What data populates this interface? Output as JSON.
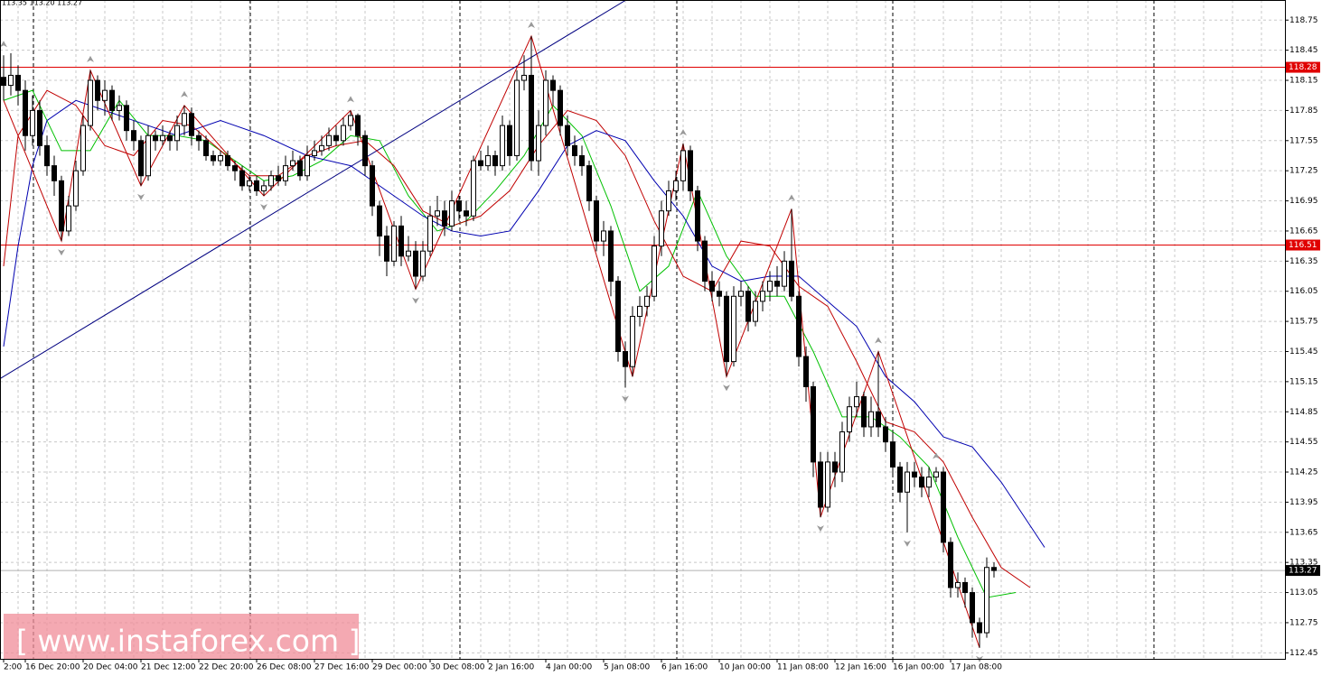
{
  "chart_data": {
    "type": "candlestick",
    "info": "113.35 113.20 113.27",
    "watermark": "[ www.instaforex.com ]",
    "ylim": [
      112.39,
      118.95
    ],
    "yticks": [
      118.75,
      118.45,
      118.15,
      117.85,
      117.55,
      117.25,
      116.95,
      116.65,
      116.35,
      116.05,
      115.75,
      115.45,
      115.15,
      114.85,
      114.55,
      114.25,
      113.95,
      113.65,
      113.35,
      113.05,
      112.75,
      112.45
    ],
    "grid": true,
    "categories": [
      "2:00",
      null,
      null,
      "16 Dec 20:00",
      null,
      null,
      null,
      null,
      null,
      null,
      null,
      "20 Dec 04:00",
      null,
      null,
      null,
      null,
      null,
      null,
      null,
      "21 Dec 12:00",
      null,
      null,
      null,
      null,
      null,
      null,
      null,
      "22 Dec 20:00",
      null,
      null,
      null,
      null,
      null,
      null,
      null,
      "26 Dec 08:00",
      null,
      null,
      null,
      null,
      null,
      null,
      null,
      "27 Dec 16:00",
      null,
      null,
      null,
      null,
      null,
      null,
      null,
      "29 Dec 00:00",
      null,
      null,
      null,
      null,
      null,
      null,
      null,
      "30 Dec 08:00",
      null,
      null,
      null,
      null,
      null,
      null,
      null,
      "2 Jan 16:00",
      null,
      null,
      null,
      null,
      null,
      null,
      null,
      "4 Jan 00:00",
      null,
      null,
      null,
      null,
      null,
      null,
      null,
      "5 Jan 08:00",
      null,
      null,
      null,
      null,
      null,
      null,
      null,
      "6 Jan 16:00",
      null,
      null,
      null,
      null,
      null,
      null,
      null,
      "10 Jan 00:00",
      null,
      null,
      null,
      null,
      null,
      null,
      null,
      "11 Jan 08:00",
      null,
      null,
      null,
      null,
      null,
      null,
      null,
      "12 Jan 16:00",
      null,
      null,
      null,
      null,
      null,
      null,
      null,
      "16 Jan 00:00",
      null,
      null,
      null,
      null,
      null,
      null,
      null,
      "17 Jan 08:00",
      null,
      null,
      null,
      null,
      null,
      null
    ],
    "values": [
      [
        118.18,
        118.4,
        117.95,
        118.1
      ],
      [
        118.1,
        118.42,
        118.0,
        118.2
      ],
      [
        118.2,
        118.3,
        117.9,
        118.05
      ],
      [
        118.05,
        118.15,
        117.45,
        117.6
      ],
      [
        117.6,
        118.0,
        117.5,
        117.85
      ],
      [
        117.85,
        117.95,
        117.4,
        117.5
      ],
      [
        117.5,
        117.6,
        117.2,
        117.3
      ],
      [
        117.3,
        117.4,
        117.0,
        117.15
      ],
      [
        117.15,
        117.2,
        116.55,
        116.65
      ],
      [
        116.65,
        117.0,
        116.6,
        116.9
      ],
      [
        116.9,
        117.35,
        116.85,
        117.25
      ],
      [
        117.25,
        117.8,
        117.2,
        117.7
      ],
      [
        117.7,
        118.25,
        117.65,
        118.15
      ],
      [
        118.15,
        118.2,
        117.85,
        117.95
      ],
      [
        117.95,
        118.15,
        117.8,
        118.05
      ],
      [
        118.05,
        118.1,
        117.75,
        117.85
      ],
      [
        117.85,
        118.0,
        117.75,
        117.9
      ],
      [
        117.9,
        117.95,
        117.55,
        117.65
      ],
      [
        117.65,
        117.75,
        117.45,
        117.55
      ],
      [
        117.55,
        117.6,
        117.1,
        117.2
      ],
      [
        117.2,
        117.7,
        117.15,
        117.6
      ],
      [
        117.6,
        117.65,
        117.45,
        117.55
      ],
      [
        117.55,
        117.7,
        117.5,
        117.6
      ],
      [
        117.6,
        117.65,
        117.45,
        117.55
      ],
      [
        117.55,
        117.8,
        117.45,
        117.7
      ],
      [
        117.7,
        117.9,
        117.6,
        117.82
      ],
      [
        117.82,
        117.88,
        117.5,
        117.6
      ],
      [
        117.6,
        117.65,
        117.45,
        117.55
      ],
      [
        117.55,
        117.6,
        117.35,
        117.4
      ],
      [
        117.4,
        117.45,
        117.3,
        117.35
      ],
      [
        117.35,
        117.45,
        117.3,
        117.4
      ],
      [
        117.4,
        117.45,
        117.25,
        117.3
      ],
      [
        117.3,
        117.35,
        117.15,
        117.25
      ],
      [
        117.25,
        117.3,
        117.05,
        117.1
      ],
      [
        117.1,
        117.2,
        117.05,
        117.15
      ],
      [
        117.15,
        117.2,
        117.0,
        117.05
      ],
      [
        117.05,
        117.15,
        117.0,
        117.1
      ],
      [
        117.1,
        117.25,
        117.05,
        117.2
      ],
      [
        117.2,
        117.3,
        117.1,
        117.15
      ],
      [
        117.15,
        117.4,
        117.1,
        117.3
      ],
      [
        117.3,
        117.45,
        117.25,
        117.35
      ],
      [
        117.35,
        117.4,
        117.15,
        117.2
      ],
      [
        117.2,
        117.5,
        117.15,
        117.4
      ],
      [
        117.4,
        117.55,
        117.35,
        117.45
      ],
      [
        117.45,
        117.6,
        117.4,
        117.5
      ],
      [
        117.5,
        117.68,
        117.45,
        117.6
      ],
      [
        117.6,
        117.7,
        117.5,
        117.55
      ],
      [
        117.55,
        117.78,
        117.5,
        117.7
      ],
      [
        117.7,
        117.85,
        117.65,
        117.8
      ],
      [
        117.8,
        117.82,
        117.5,
        117.6
      ],
      [
        117.6,
        117.65,
        117.2,
        117.3
      ],
      [
        117.3,
        117.35,
        116.8,
        116.9
      ],
      [
        116.9,
        116.95,
        116.4,
        116.6
      ],
      [
        116.6,
        116.7,
        116.2,
        116.35
      ],
      [
        116.35,
        116.75,
        116.3,
        116.7
      ],
      [
        116.7,
        116.8,
        116.3,
        116.4
      ],
      [
        116.4,
        116.6,
        116.35,
        116.45
      ],
      [
        116.45,
        116.55,
        116.07,
        116.2
      ],
      [
        116.2,
        116.55,
        116.15,
        116.45
      ],
      [
        116.45,
        116.9,
        116.4,
        116.8
      ],
      [
        116.8,
        117.0,
        116.7,
        116.85
      ],
      [
        116.85,
        116.95,
        116.6,
        116.7
      ],
      [
        116.7,
        117.05,
        116.65,
        116.95
      ],
      [
        116.95,
        117.0,
        116.75,
        116.85
      ],
      [
        116.85,
        116.95,
        116.7,
        116.8
      ],
      [
        116.8,
        117.4,
        116.75,
        117.35
      ],
      [
        117.35,
        117.45,
        117.25,
        117.3
      ],
      [
        117.3,
        117.5,
        117.25,
        117.4
      ],
      [
        117.4,
        117.45,
        117.2,
        117.3
      ],
      [
        117.3,
        117.8,
        117.25,
        117.7
      ],
      [
        117.7,
        117.75,
        117.3,
        117.4
      ],
      [
        117.4,
        118.25,
        117.35,
        118.15
      ],
      [
        118.15,
        118.4,
        118.05,
        118.2
      ],
      [
        118.2,
        118.59,
        117.25,
        117.35
      ],
      [
        117.35,
        117.85,
        117.2,
        117.7
      ],
      [
        117.7,
        118.25,
        117.6,
        118.15
      ],
      [
        118.15,
        118.2,
        117.9,
        118.05
      ],
      [
        118.05,
        118.1,
        117.6,
        117.7
      ],
      [
        117.7,
        117.8,
        117.4,
        117.5
      ],
      [
        117.5,
        117.6,
        117.3,
        117.4
      ],
      [
        117.4,
        117.5,
        117.2,
        117.3
      ],
      [
        117.3,
        117.35,
        116.85,
        116.95
      ],
      [
        116.95,
        117.0,
        116.45,
        116.55
      ],
      [
        116.55,
        116.75,
        116.4,
        116.65
      ],
      [
        116.65,
        116.7,
        116.0,
        116.15
      ],
      [
        116.15,
        116.2,
        115.35,
        115.45
      ],
      [
        115.45,
        115.55,
        115.09,
        115.3
      ],
      [
        115.3,
        115.9,
        115.2,
        115.8
      ],
      [
        115.8,
        116.0,
        115.7,
        115.9
      ],
      [
        115.9,
        116.1,
        115.8,
        116.0
      ],
      [
        116.0,
        116.6,
        115.95,
        116.5
      ],
      [
        116.5,
        116.95,
        116.4,
        116.85
      ],
      [
        116.85,
        117.15,
        116.8,
        117.05
      ],
      [
        117.05,
        117.25,
        116.95,
        117.15
      ],
      [
        117.15,
        117.52,
        117.05,
        117.45
      ],
      [
        117.45,
        117.5,
        116.95,
        117.05
      ],
      [
        117.05,
        117.1,
        116.45,
        116.55
      ],
      [
        116.55,
        116.6,
        116.05,
        116.15
      ],
      [
        116.15,
        116.25,
        115.95,
        116.05
      ],
      [
        116.05,
        116.15,
        115.9,
        116.0
      ],
      [
        116.0,
        116.05,
        115.2,
        115.35
      ],
      [
        115.35,
        116.1,
        115.3,
        116.0
      ],
      [
        116.0,
        116.15,
        115.9,
        116.05
      ],
      [
        116.05,
        116.1,
        115.65,
        115.75
      ],
      [
        115.75,
        116.05,
        115.7,
        115.95
      ],
      [
        115.95,
        116.15,
        115.85,
        116.05
      ],
      [
        116.05,
        116.25,
        115.95,
        116.15
      ],
      [
        116.15,
        116.3,
        116.0,
        116.1
      ],
      [
        116.1,
        116.45,
        116.05,
        116.35
      ],
      [
        116.35,
        116.87,
        115.95,
        116.0
      ],
      [
        116.0,
        116.05,
        115.3,
        115.4
      ],
      [
        115.4,
        115.5,
        114.95,
        115.1
      ],
      [
        115.1,
        115.15,
        114.2,
        114.35
      ],
      [
        114.35,
        114.45,
        113.8,
        113.9
      ],
      [
        113.9,
        114.45,
        113.85,
        114.35
      ],
      [
        114.35,
        114.45,
        114.1,
        114.25
      ],
      [
        114.25,
        114.75,
        114.15,
        114.65
      ],
      [
        114.65,
        115.0,
        114.55,
        114.9
      ],
      [
        114.9,
        115.15,
        114.8,
        115.0
      ],
      [
        115.0,
        115.05,
        114.6,
        114.7
      ],
      [
        114.7,
        115.0,
        114.6,
        114.85
      ],
      [
        114.85,
        115.45,
        114.6,
        114.7
      ],
      [
        114.7,
        114.8,
        114.45,
        114.55
      ],
      [
        114.55,
        114.65,
        114.2,
        114.3
      ],
      [
        114.3,
        114.35,
        113.95,
        114.05
      ],
      [
        114.05,
        114.35,
        113.65,
        114.25
      ],
      [
        114.25,
        114.35,
        114.1,
        114.2
      ],
      [
        114.2,
        114.3,
        114.0,
        114.1
      ],
      [
        114.1,
        114.3,
        114.0,
        114.2
      ],
      [
        114.2,
        114.3,
        114.15,
        114.25
      ],
      [
        114.25,
        114.3,
        113.45,
        113.55
      ],
      [
        113.55,
        113.6,
        113.0,
        113.1
      ],
      [
        113.1,
        113.25,
        113.0,
        113.15
      ],
      [
        113.15,
        113.2,
        112.9,
        113.05
      ],
      [
        113.05,
        113.1,
        112.6,
        112.75
      ],
      [
        112.75,
        112.8,
        112.5,
        112.65
      ],
      [
        112.65,
        113.4,
        112.6,
        113.3
      ],
      [
        113.3,
        113.35,
        113.2,
        113.27
      ]
    ],
    "indicators": [
      {
        "color": "#00c000",
        "x": [
          0,
          4,
          8,
          12,
          16,
          20,
          24,
          28,
          32,
          36,
          40,
          44,
          48,
          52,
          56,
          60,
          64,
          68,
          72,
          76,
          80,
          84,
          88,
          92,
          96,
          100,
          104,
          108,
          112,
          116,
          120,
          124,
          128,
          132,
          136,
          140
        ],
        "values": [
          117.95,
          118.05,
          117.45,
          117.45,
          117.95,
          117.6,
          117.6,
          117.55,
          117.35,
          117.15,
          117.2,
          117.35,
          117.6,
          117.55,
          117.0,
          116.65,
          116.75,
          117.05,
          117.4,
          117.9,
          117.6,
          116.9,
          116.05,
          116.3,
          117.05,
          116.4,
          116.0,
          116.0,
          115.45,
          114.8,
          114.8,
          114.6,
          114.3,
          113.6,
          113.0,
          113.05
        ]
      },
      {
        "color": "#c00000",
        "x": [
          0,
          2,
          6,
          10,
          14,
          18,
          22,
          26,
          30,
          34,
          38,
          42,
          46,
          50,
          54,
          58,
          62,
          66,
          70,
          74,
          78,
          82,
          86,
          90,
          94,
          98,
          102,
          106,
          110,
          114,
          118,
          122,
          126,
          130,
          134,
          138,
          142
        ],
        "values": [
          116.3,
          117.6,
          118.05,
          117.9,
          117.5,
          117.4,
          117.75,
          117.7,
          117.45,
          117.2,
          117.2,
          117.4,
          117.5,
          117.55,
          117.3,
          116.85,
          116.7,
          116.8,
          117.05,
          117.5,
          117.85,
          117.75,
          117.4,
          116.75,
          116.2,
          116.05,
          116.55,
          116.5,
          116.1,
          115.9,
          115.35,
          114.75,
          114.65,
          114.35,
          113.8,
          113.3,
          113.1
        ]
      },
      {
        "color": "#0000b0",
        "x": [
          0,
          2,
          4,
          6,
          10,
          14,
          18,
          24,
          30,
          36,
          42,
          48,
          54,
          58,
          62,
          66,
          70,
          74,
          78,
          82,
          86,
          90,
          94,
          98,
          102,
          106,
          110,
          114,
          118,
          122,
          126,
          130,
          134,
          138,
          144
        ],
        "values": [
          115.5,
          116.5,
          117.3,
          117.75,
          117.95,
          117.85,
          117.75,
          117.6,
          117.75,
          117.6,
          117.4,
          117.3,
          117.0,
          116.8,
          116.65,
          116.6,
          116.65,
          117.05,
          117.5,
          117.65,
          117.55,
          117.15,
          116.8,
          116.3,
          116.15,
          116.2,
          116.2,
          115.95,
          115.7,
          115.2,
          114.95,
          114.6,
          114.5,
          114.15,
          113.5
        ]
      }
    ],
    "zigzag": {
      "color": "#c00000",
      "x": [
        0,
        8,
        12,
        19,
        25,
        36,
        48,
        57,
        73,
        87,
        94,
        100,
        109,
        113,
        121,
        135
      ],
      "values": [
        117.95,
        116.55,
        118.25,
        117.1,
        117.9,
        117.0,
        117.85,
        116.07,
        118.59,
        115.2,
        117.52,
        115.2,
        116.87,
        113.8,
        115.45,
        112.5
      ]
    },
    "trendline": {
      "color": "#000080",
      "x": [
        -0.5,
        86.1
      ],
      "values": [
        115.18,
        118.95
      ]
    },
    "fractals": {
      "up": [
        0,
        12,
        25,
        48,
        73,
        94,
        109,
        121,
        129
      ],
      "down": [
        8,
        19,
        36,
        57,
        86,
        100,
        113,
        125,
        135
      ]
    },
    "levels": [
      {
        "value": 118.28,
        "color": "#e00000"
      },
      {
        "value": 116.51,
        "color": "#e00000"
      }
    ],
    "bid": 113.27
  }
}
